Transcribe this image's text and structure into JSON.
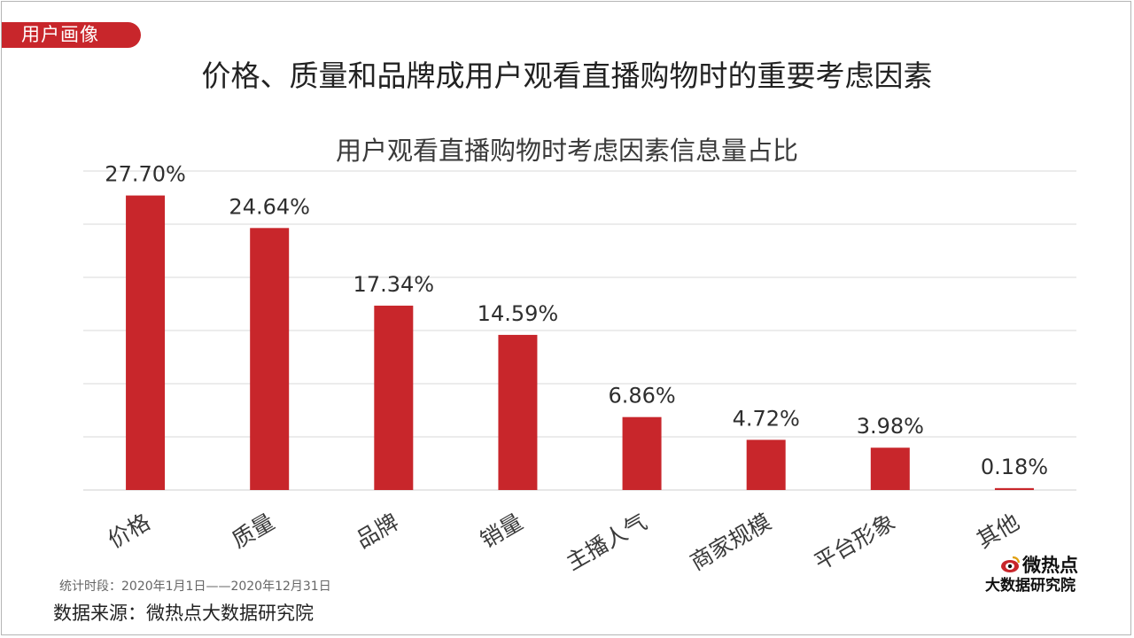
{
  "section_tag": "用户画像",
  "main_title": "价格、质量和品牌成用户观看直播购物时的重要考虑因素",
  "footnote": "统计时段：2020年1月1日——2020年12月31日",
  "source": "数据来源：微热点大数据研究院",
  "logo": {
    "brand": "微热点",
    "sub": "大数据研究院",
    "icon": "weibo-eye-icon"
  },
  "colors": {
    "accent": "#c8262b",
    "bar": "#c8262b",
    "grid": "#d9d9d9"
  },
  "chart_data": {
    "type": "bar",
    "title": "用户观看直播购物时考虑因素信息量占比",
    "categories": [
      "价格",
      "质量",
      "品牌",
      "销量",
      "主播人气",
      "商家规模",
      "平台形象",
      "其他"
    ],
    "values": [
      27.7,
      24.64,
      17.34,
      14.59,
      6.86,
      4.72,
      3.98,
      0.18
    ],
    "value_labels": [
      "27.70%",
      "24.64%",
      "17.34%",
      "14.59%",
      "6.86%",
      "4.72%",
      "3.98%",
      "0.18%"
    ],
    "ylim": [
      0,
      30
    ],
    "grid": true,
    "xlabel": "",
    "ylabel": ""
  }
}
